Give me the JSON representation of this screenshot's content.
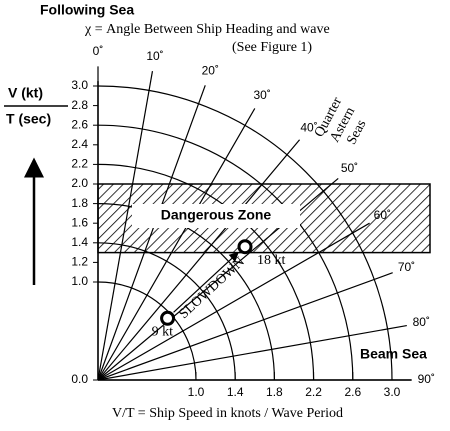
{
  "header": {
    "subtitle": "Following Sea",
    "title": "χ = Angle Between Ship Heading and wave",
    "note": "(See Figure 1)"
  },
  "y_axis": {
    "label_top": "V (kt)",
    "label_bottom": "T (sec)",
    "ticks": [
      {
        "value": 0,
        "label": "0.0"
      },
      {
        "value": 1,
        "label": "1.0"
      },
      1.2,
      1.4,
      1.6,
      1.8,
      {
        "value": 2,
        "label": "2.0"
      },
      2.2,
      2.4,
      2.6,
      2.8,
      {
        "value": 3,
        "label": "3.0"
      }
    ]
  },
  "x_axis": {
    "label": "V/T = Ship Speed in knots / Wave Period",
    "ticks": [
      {
        "value": 1,
        "label": "1.0"
      },
      1.4,
      1.8,
      2.2,
      2.6,
      {
        "value": 3,
        "label": "3.0"
      }
    ]
  },
  "angles": [
    {
      "value": 0,
      "label": "0˚"
    },
    {
      "value": 10,
      "label": "10˚"
    },
    {
      "value": 20,
      "label": "20˚"
    },
    {
      "value": 30,
      "label": "30˚"
    },
    {
      "value": 40,
      "label": "40˚"
    },
    {
      "value": 50,
      "label": "50˚"
    },
    {
      "value": 60,
      "label": "60˚"
    },
    {
      "value": 70,
      "label": "70˚"
    },
    {
      "value": 80,
      "label": "80˚"
    },
    {
      "value": 90,
      "label": "90˚"
    }
  ],
  "zone": {
    "label": "Dangerous Zone",
    "range": [
      1.3,
      2.0
    ]
  },
  "side_label": [
    "Quarter",
    "Astern",
    "Seas"
  ],
  "beam_label": "Beam Sea",
  "points": [
    {
      "label": "18 kt",
      "x": 1.5,
      "y": 1.36
    },
    {
      "label": "9 kt",
      "x": 0.71,
      "y": 0.63
    }
  ],
  "arrow_label": "SLOWDOWN"
}
